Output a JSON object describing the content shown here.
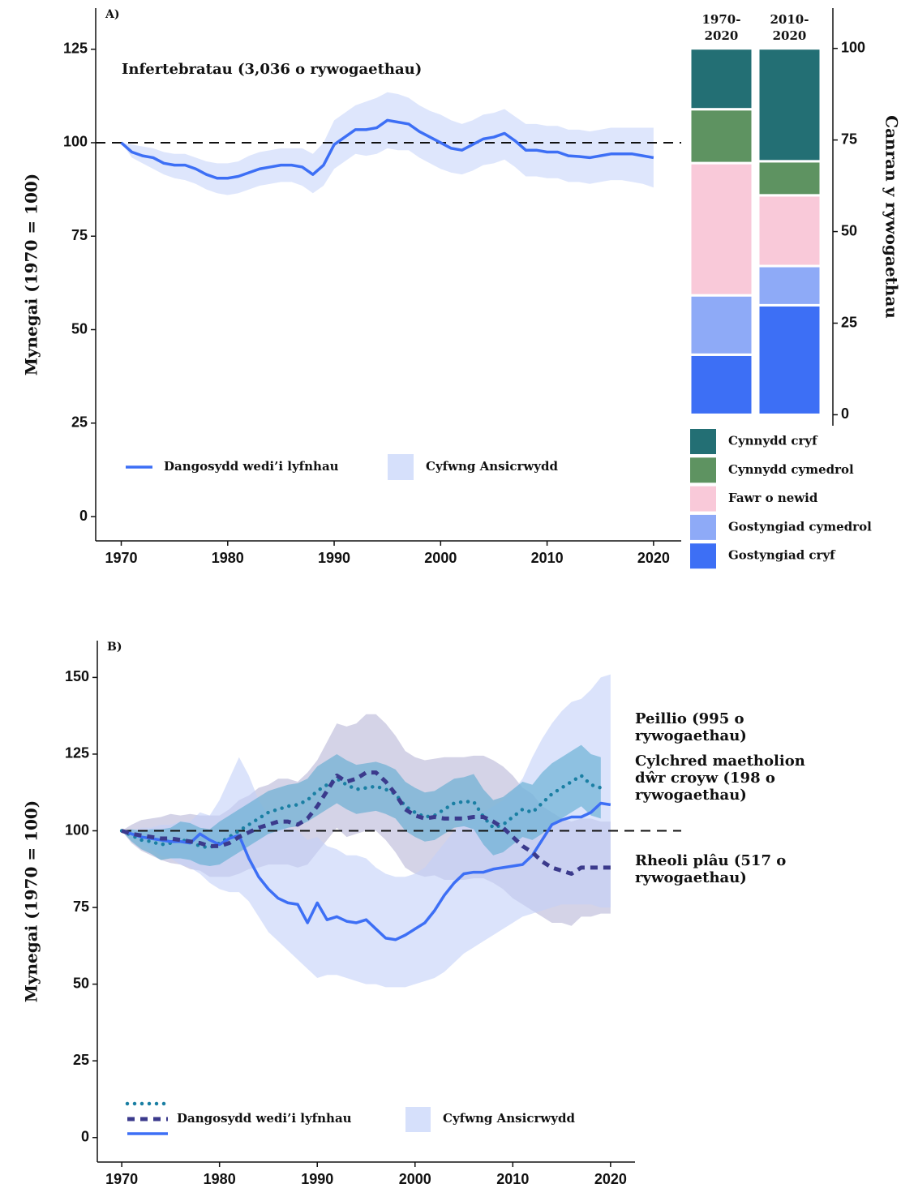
{
  "chart_data": [
    {
      "type": "line",
      "panel_label": "A)",
      "y_label": "Mynegai (1970 = 100)",
      "x": [
        1970,
        1971,
        1972,
        1973,
        1974,
        1975,
        1976,
        1977,
        1978,
        1979,
        1980,
        1981,
        1982,
        1983,
        1984,
        1985,
        1986,
        1987,
        1988,
        1989,
        1990,
        1991,
        1992,
        1993,
        1994,
        1995,
        1996,
        1997,
        1998,
        1999,
        2000,
        2001,
        2002,
        2003,
        2004,
        2005,
        2006,
        2007,
        2008,
        2009,
        2010,
        2011,
        2012,
        2013,
        2014,
        2015,
        2016,
        2017,
        2018,
        2019,
        2020
      ],
      "xlim": [
        1967.6,
        2022.6
      ],
      "xticks": [
        1970,
        1980,
        1990,
        2000,
        2010,
        2020
      ],
      "ylim": [
        -6.5,
        136
      ],
      "yticks": [
        0,
        25,
        50,
        75,
        100,
        125
      ],
      "reference_line": 100,
      "legend_labels": {
        "line": "Dangosydd wedi’i lyfnhau",
        "band": "Cyfwng Ansicrwydd"
      },
      "legend_band_color": "#d6e0fb",
      "series": [
        {
          "name": "Infertebratau (3,036 o rywogaethau)",
          "color": "#3d6ff5",
          "style": "solid",
          "band_color": "#d9e2fbdd",
          "values": [
            100,
            97.5,
            96.5,
            96,
            94.5,
            94,
            94,
            93,
            91.5,
            90.5,
            90.5,
            91,
            92,
            93,
            93.5,
            94,
            94,
            93.5,
            91.5,
            94,
            99.5,
            101.5,
            103.5,
            103.5,
            104,
            106,
            105.5,
            105,
            103,
            101.5,
            100,
            98.5,
            98,
            99.5,
            101,
            101.5,
            102.5,
            100.5,
            98,
            98,
            97.5,
            97.5,
            96.5,
            96.3,
            96,
            96.5,
            97,
            97,
            97,
            96.5,
            96
          ],
          "lower": [
            100,
            96,
            94.5,
            93,
            91.5,
            90.5,
            90,
            89,
            87.5,
            86.5,
            86,
            86.5,
            87.5,
            88.5,
            89,
            89.5,
            89.5,
            88.5,
            86.5,
            88.5,
            93,
            95,
            97,
            96.5,
            97,
            98.5,
            98,
            98,
            96,
            94.5,
            93,
            92,
            91.5,
            92.5,
            94,
            94.5,
            95.5,
            93.5,
            91,
            91,
            90.5,
            90.5,
            89.5,
            89.5,
            89,
            89.5,
            90,
            90,
            89.5,
            89,
            88
          ],
          "upper": [
            100,
            99.5,
            99,
            98.5,
            97.5,
            97,
            97,
            96,
            95,
            94.5,
            94.5,
            95,
            96.5,
            97.5,
            98,
            98.5,
            98.5,
            98.5,
            97,
            100,
            106,
            108,
            110,
            111,
            112,
            113.5,
            113,
            112,
            110,
            108.5,
            107.5,
            106,
            105,
            106,
            107.5,
            108,
            109,
            107,
            105,
            105,
            104.5,
            104.5,
            103.5,
            103.5,
            103,
            103.5,
            104,
            104,
            104,
            104,
            104
          ]
        }
      ]
    },
    {
      "type": "bar",
      "stacked": true,
      "y_label": "Canran y rywogaethau",
      "categories": [
        "1970-2020",
        "2010-2020"
      ],
      "ylim": [
        -3,
        111
      ],
      "yticks": [
        0,
        25,
        50,
        75,
        100
      ],
      "series": [
        {
          "name": "Gostyngiad cryf",
          "color": "#3d6ff5",
          "values": [
            16.4,
            29.9
          ]
        },
        {
          "name": "Gostyngiad cymedrol",
          "color": "#8eaaf7",
          "values": [
            16.2,
            10.7
          ]
        },
        {
          "name": "Fawr o newid",
          "color": "#f9c9d9",
          "values": [
            36.1,
            19.3
          ]
        },
        {
          "name": "Cynnydd cymedrol",
          "color": "#5e9361",
          "values": [
            14.7,
            9.3
          ]
        },
        {
          "name": "Cynnydd cryf",
          "color": "#236f74",
          "values": [
            16.6,
            30.8
          ]
        }
      ]
    },
    {
      "type": "line",
      "panel_label": "B)",
      "y_label": "Mynegai (1970 = 100)",
      "x": [
        1970,
        1971,
        1972,
        1973,
        1974,
        1975,
        1976,
        1977,
        1978,
        1979,
        1980,
        1981,
        1982,
        1983,
        1984,
        1985,
        1986,
        1987,
        1988,
        1989,
        1990,
        1991,
        1992,
        1993,
        1994,
        1995,
        1996,
        1997,
        1998,
        1999,
        2000,
        2001,
        2002,
        2003,
        2004,
        2005,
        2006,
        2007,
        2008,
        2009,
        2010,
        2011,
        2012,
        2013,
        2014,
        2015,
        2016,
        2017,
        2018,
        2019,
        2020
      ],
      "xlim": [
        1967.5,
        2022.5
      ],
      "xticks": [
        1970,
        1980,
        1990,
        2000,
        2010,
        2020
      ],
      "ylim": [
        -8,
        162
      ],
      "yticks": [
        0,
        25,
        50,
        75,
        100,
        125,
        150
      ],
      "reference_line": 100,
      "legend_labels": {
        "line": "Dangosydd wedi’i lyfnhau",
        "band": "Cyfwng Ansicrwydd"
      },
      "legend_band_color": "#d6e0fb",
      "series": [
        {
          "name": "Peillio (995 o rywogaethau)",
          "color": "#1a7fa3",
          "style": "dotted",
          "band_color": "#5aaad099",
          "values": [
            100,
            98.5,
            97,
            96.5,
            95.5,
            96,
            97,
            96.5,
            95,
            94.5,
            96,
            98,
            100,
            102,
            104,
            106,
            107,
            108,
            108.5,
            110,
            113,
            115,
            117,
            115,
            113.5,
            114,
            114.5,
            113.5,
            112,
            108,
            106,
            104.5,
            105,
            107,
            109,
            109.5,
            109.5,
            104.5,
            101,
            102,
            104.5,
            107,
            106,
            109,
            112,
            114,
            116,
            118,
            115,
            114,
            null
          ],
          "lower": [
            100,
            96.5,
            94,
            92.5,
            90.5,
            91,
            91,
            90.5,
            89,
            88.5,
            89,
            91,
            93,
            95,
            97,
            99,
            100,
            101,
            101.5,
            103,
            105,
            107,
            109,
            107,
            105.5,
            106,
            106.5,
            105.5,
            104,
            100,
            98,
            96.5,
            97,
            99,
            101,
            101.5,
            100.5,
            95.5,
            92,
            93,
            95.5,
            98,
            97,
            99,
            102,
            104,
            106,
            108,
            105,
            104,
            null
          ],
          "upper": [
            100,
            100.5,
            100,
            100.5,
            100.5,
            101,
            103,
            102.5,
            101,
            100.5,
            103,
            105,
            107,
            109,
            111,
            113,
            114,
            115,
            115.5,
            117,
            121,
            123,
            125,
            123,
            121.5,
            122,
            122.5,
            121.5,
            120,
            116,
            114,
            112.5,
            113,
            115,
            117,
            117.5,
            118.5,
            113.5,
            110,
            111,
            113.5,
            116,
            115,
            119,
            122,
            124,
            126,
            128,
            125,
            124,
            null
          ]
        },
        {
          "name": "Cylchred maetholion dŵr croyw (198 o rywogaethau)",
          "color": "#3d6ff5",
          "style": "solid",
          "band_color": "#c3d1f999",
          "values": [
            100,
            99,
            98,
            97.5,
            97,
            96.5,
            96.5,
            96,
            99,
            97,
            95.5,
            97.5,
            98.5,
            91,
            85,
            81,
            78,
            76.5,
            76,
            70,
            76.5,
            71,
            72,
            70.5,
            70,
            71,
            68,
            65,
            64.5,
            66,
            68,
            70,
            74,
            79,
            83,
            86,
            86.5,
            86.5,
            87.5,
            88,
            88.5,
            89,
            92,
            97,
            102,
            103.5,
            104.5,
            104.5,
            106,
            109,
            108.5
          ],
          "lower": [
            100,
            98,
            96,
            94,
            92,
            91,
            89,
            88,
            86,
            83,
            81,
            80,
            80,
            77,
            72,
            67,
            64,
            61,
            58,
            55,
            52,
            53,
            53,
            52,
            51,
            50,
            50,
            49,
            49,
            49,
            50,
            51,
            52,
            54,
            57,
            60,
            62,
            64,
            66,
            68,
            70,
            72,
            73,
            74,
            75,
            76,
            76,
            76,
            76,
            75,
            75
          ],
          "upper": [
            100,
            100,
            101,
            101,
            102,
            102,
            103,
            103,
            106,
            105,
            110,
            117,
            124,
            118,
            110,
            105,
            103,
            101,
            100,
            97,
            98,
            95,
            94,
            92,
            92,
            91,
            88,
            86,
            85,
            85,
            86,
            88,
            92,
            96,
            100,
            103,
            105,
            106,
            108,
            110,
            113,
            117,
            124,
            130,
            135,
            139,
            142,
            143,
            146,
            150,
            151
          ]
        },
        {
          "name": "Rheoli plâu (517 o rywogaethau)",
          "color": "#3b3a8c",
          "style": "dashed",
          "band_color": "#a9a8cf80",
          "values": [
            100,
            99,
            98.5,
            98,
            97.5,
            97.5,
            97,
            96.5,
            96,
            95,
            95,
            96,
            98,
            99.5,
            101,
            102,
            103,
            103,
            102,
            104,
            108,
            113,
            118,
            116,
            117,
            119,
            119,
            116,
            112,
            107,
            105,
            104,
            104.5,
            104,
            104,
            104,
            104.5,
            104.5,
            103,
            101,
            98,
            95,
            93,
            90,
            88,
            87,
            86,
            88,
            88,
            88,
            88
          ],
          "lower": [
            100,
            96,
            93.5,
            92,
            90.5,
            89.5,
            89,
            87.5,
            87,
            85,
            85,
            85,
            86,
            87.5,
            88,
            89,
            89,
            89,
            88,
            89,
            93,
            97,
            101,
            98,
            99,
            100,
            100,
            97,
            93,
            88,
            86,
            85,
            85.5,
            84,
            84,
            84,
            84.5,
            84.5,
            83,
            81,
            78,
            76,
            74,
            72,
            70,
            70,
            69,
            72,
            72,
            73,
            73
          ],
          "upper": [
            100,
            102,
            103.5,
            104,
            104.5,
            105.5,
            105,
            105.5,
            105,
            105,
            105,
            107,
            110,
            111.5,
            114,
            115,
            117,
            117,
            116,
            119,
            123,
            129,
            135,
            134,
            135,
            138,
            138,
            135,
            131,
            126,
            124,
            123,
            123.5,
            124,
            124,
            124,
            124.5,
            124.5,
            123,
            121,
            118,
            114,
            112,
            108,
            106,
            104,
            103,
            104,
            104,
            103,
            103
          ]
        }
      ]
    }
  ]
}
